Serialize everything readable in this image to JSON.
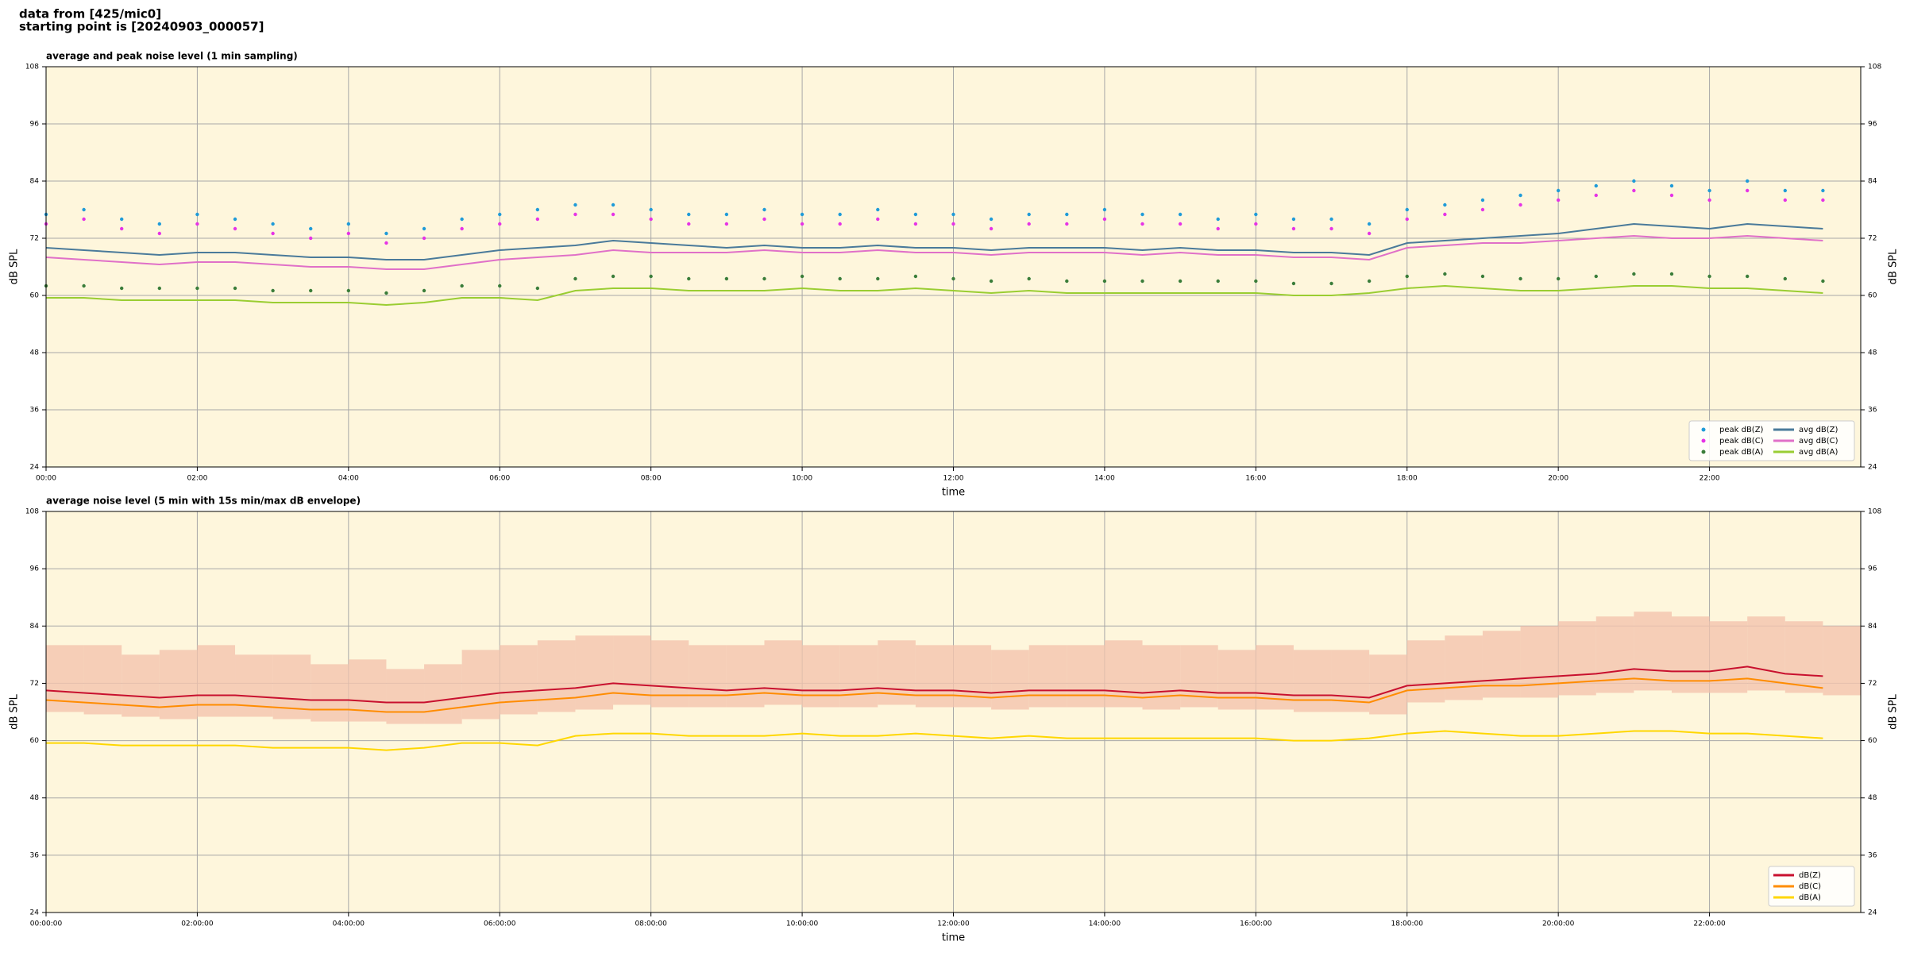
{
  "page_title": [
    "data from [425/mic0]",
    "starting point is [20240903_000057]"
  ],
  "chart_data": [
    {
      "type": "line",
      "title": "average and peak noise level (1 min sampling)",
      "xlabel": "time",
      "ylabel": "dB SPL",
      "background": "#fef6dc",
      "grid": true,
      "legend": "lower right",
      "xlim": [
        0,
        24
      ],
      "ylim": [
        24,
        108
      ],
      "xticks": [
        {
          "value": 0,
          "label": "00:00"
        },
        {
          "value": 2,
          "label": "02:00"
        },
        {
          "value": 4,
          "label": "04:00"
        },
        {
          "value": 6,
          "label": "06:00"
        },
        {
          "value": 8,
          "label": "08:00"
        },
        {
          "value": 10,
          "label": "10:00"
        },
        {
          "value": 12,
          "label": "12:00"
        },
        {
          "value": 14,
          "label": "14:00"
        },
        {
          "value": 16,
          "label": "16:00"
        },
        {
          "value": 18,
          "label": "18:00"
        },
        {
          "value": 20,
          "label": "20:00"
        },
        {
          "value": 22,
          "label": "22:00"
        }
      ],
      "yticks": [
        24,
        36,
        48,
        60,
        72,
        84,
        96,
        108
      ],
      "x": [
        0,
        0.5,
        1,
        1.5,
        2,
        2.5,
        3,
        3.5,
        4,
        4.5,
        5,
        5.5,
        6,
        6.5,
        7,
        7.5,
        8,
        8.5,
        9,
        9.5,
        10,
        10.5,
        11,
        11.5,
        12,
        12.5,
        13,
        13.5,
        14,
        14.5,
        15,
        15.5,
        16,
        16.5,
        17,
        17.5,
        18,
        18.5,
        19,
        19.5,
        20,
        20.5,
        21,
        21.5,
        22,
        22.5,
        23,
        23.5
      ],
      "series": [
        {
          "name": "peak dB(Z)",
          "style": "dots",
          "color": "#1f9bd8",
          "values": [
            77,
            78,
            76,
            75,
            77,
            76,
            75,
            74,
            75,
            73,
            74,
            76,
            77,
            78,
            79,
            79,
            78,
            77,
            77,
            78,
            77,
            77,
            78,
            77,
            77,
            76,
            77,
            77,
            78,
            77,
            77,
            76,
            77,
            76,
            76,
            75,
            78,
            79,
            80,
            81,
            82,
            83,
            84,
            83,
            82,
            84,
            82,
            82
          ]
        },
        {
          "name": "peak dB(C)",
          "style": "dots",
          "color": "#e633e6",
          "values": [
            75,
            76,
            74,
            73,
            75,
            74,
            73,
            72,
            73,
            71,
            72,
            74,
            75,
            76,
            77,
            77,
            76,
            75,
            75,
            76,
            75,
            75,
            76,
            75,
            75,
            74,
            75,
            75,
            76,
            75,
            75,
            74,
            75,
            74,
            74,
            73,
            76,
            77,
            78,
            79,
            80,
            81,
            82,
            81,
            80,
            82,
            80,
            80
          ]
        },
        {
          "name": "peak dB(A)",
          "style": "dots",
          "color": "#3a7d3a",
          "values": [
            62,
            62,
            61.5,
            61.5,
            61.5,
            61.5,
            61,
            61,
            61,
            60.5,
            61,
            62,
            62,
            61.5,
            63.5,
            64,
            64,
            63.5,
            63.5,
            63.5,
            64,
            63.5,
            63.5,
            64,
            63.5,
            63,
            63.5,
            63,
            63,
            63,
            63,
            63,
            63,
            62.5,
            62.5,
            63,
            64,
            64.5,
            64,
            63.5,
            63.5,
            64,
            64.5,
            64.5,
            64,
            64,
            63.5,
            63
          ]
        },
        {
          "name": "avg dB(Z)",
          "style": "line",
          "color": "#4a7a9a",
          "values": [
            70,
            69.5,
            69,
            68.5,
            69,
            69,
            68.5,
            68,
            68,
            67.5,
            67.5,
            68.5,
            69.5,
            70,
            70.5,
            71.5,
            71,
            70.5,
            70,
            70.5,
            70,
            70,
            70.5,
            70,
            70,
            69.5,
            70,
            70,
            70,
            69.5,
            70,
            69.5,
            69.5,
            69,
            69,
            68.5,
            71,
            71.5,
            72,
            72.5,
            73,
            74,
            75,
            74.5,
            74,
            75,
            74.5,
            74
          ]
        },
        {
          "name": "avg dB(C)",
          "style": "line",
          "color": "#e070c8",
          "values": [
            68,
            67.5,
            67,
            66.5,
            67,
            67,
            66.5,
            66,
            66,
            65.5,
            65.5,
            66.5,
            67.5,
            68,
            68.5,
            69.5,
            69,
            69,
            69,
            69.5,
            69,
            69,
            69.5,
            69,
            69,
            68.5,
            69,
            69,
            69,
            68.5,
            69,
            68.5,
            68.5,
            68,
            68,
            67.5,
            70,
            70.5,
            71,
            71,
            71.5,
            72,
            72.5,
            72,
            72,
            72.5,
            72,
            71.5
          ]
        },
        {
          "name": "avg dB(A)",
          "style": "line",
          "color": "#9acd32",
          "values": [
            59.5,
            59.5,
            59,
            59,
            59,
            59,
            58.5,
            58.5,
            58.5,
            58,
            58.5,
            59.5,
            59.5,
            59,
            61,
            61.5,
            61.5,
            61,
            61,
            61,
            61.5,
            61,
            61,
            61.5,
            61,
            60.5,
            61,
            60.5,
            60.5,
            60.5,
            60.5,
            60.5,
            60.5,
            60,
            60,
            60.5,
            61.5,
            62,
            61.5,
            61,
            61,
            61.5,
            62,
            62,
            61.5,
            61.5,
            61,
            60.5
          ]
        }
      ]
    },
    {
      "type": "line",
      "title": "average noise level (5 min with 15s min/max dB envelope)",
      "xlabel": "time",
      "ylabel": "dB SPL",
      "background": "#fef6dc",
      "grid": true,
      "legend": "lower right",
      "xlim": [
        0,
        24
      ],
      "ylim": [
        24,
        108
      ],
      "xticks": [
        {
          "value": 0,
          "label": "00:00:00"
        },
        {
          "value": 2,
          "label": "02:00:00"
        },
        {
          "value": 4,
          "label": "04:00:00"
        },
        {
          "value": 6,
          "label": "06:00:00"
        },
        {
          "value": 8,
          "label": "08:00:00"
        },
        {
          "value": 10,
          "label": "10:00:00"
        },
        {
          "value": 12,
          "label": "12:00:00"
        },
        {
          "value": 14,
          "label": "14:00:00"
        },
        {
          "value": 16,
          "label": "16:00:00"
        },
        {
          "value": 18,
          "label": "18:00:00"
        },
        {
          "value": 20,
          "label": "20:00:00"
        },
        {
          "value": 22,
          "label": "22:00:00"
        }
      ],
      "yticks": [
        24,
        36,
        48,
        60,
        72,
        84,
        96,
        108
      ],
      "x": [
        0,
        0.5,
        1,
        1.5,
        2,
        2.5,
        3,
        3.5,
        4,
        4.5,
        5,
        5.5,
        6,
        6.5,
        7,
        7.5,
        8,
        8.5,
        9,
        9.5,
        10,
        10.5,
        11,
        11.5,
        12,
        12.5,
        13,
        13.5,
        14,
        14.5,
        15,
        15.5,
        16,
        16.5,
        17,
        17.5,
        18,
        18.5,
        19,
        19.5,
        20,
        20.5,
        21,
        21.5,
        22,
        22.5,
        23,
        23.5
      ],
      "band": {
        "color": "#f4c4ae",
        "lower": [
          66,
          65.5,
          65,
          64.5,
          65,
          65,
          64.5,
          64,
          64,
          63.5,
          63.5,
          64.5,
          65.5,
          66,
          66.5,
          67.5,
          67,
          67,
          67,
          67.5,
          67,
          67,
          67.5,
          67,
          67,
          66.5,
          67,
          67,
          67,
          66.5,
          67,
          66.5,
          66.5,
          66,
          66,
          65.5,
          68,
          68.5,
          69,
          69,
          69.5,
          70,
          70.5,
          70,
          70,
          70.5,
          70,
          69.5
        ],
        "upper": [
          80,
          80,
          78,
          79,
          80,
          78,
          78,
          76,
          77,
          75,
          76,
          79,
          80,
          81,
          82,
          82,
          81,
          80,
          80,
          81,
          80,
          80,
          81,
          80,
          80,
          79,
          80,
          80,
          81,
          80,
          80,
          79,
          80,
          79,
          79,
          78,
          81,
          82,
          83,
          84,
          85,
          86,
          87,
          86,
          85,
          86,
          85,
          84
        ]
      },
      "series": [
        {
          "name": "dB(Z)",
          "style": "line",
          "color": "#c8102e",
          "values": [
            70.5,
            70,
            69.5,
            69,
            69.5,
            69.5,
            69,
            68.5,
            68.5,
            68,
            68,
            69,
            70,
            70.5,
            71,
            72,
            71.5,
            71,
            70.5,
            71,
            70.5,
            70.5,
            71,
            70.5,
            70.5,
            70,
            70.5,
            70.5,
            70.5,
            70,
            70.5,
            70,
            70,
            69.5,
            69.5,
            69,
            71.5,
            72,
            72.5,
            73,
            73.5,
            74,
            75,
            74.5,
            74.5,
            75.5,
            74,
            73.5
          ]
        },
        {
          "name": "dB(C)",
          "style": "line",
          "color": "#ff8c00",
          "values": [
            68.5,
            68,
            67.5,
            67,
            67.5,
            67.5,
            67,
            66.5,
            66.5,
            66,
            66,
            67,
            68,
            68.5,
            69,
            70,
            69.5,
            69.5,
            69.5,
            70,
            69.5,
            69.5,
            70,
            69.5,
            69.5,
            69,
            69.5,
            69.5,
            69.5,
            69,
            69.5,
            69,
            69,
            68.5,
            68.5,
            68,
            70.5,
            71,
            71.5,
            71.5,
            72,
            72.5,
            73,
            72.5,
            72.5,
            73,
            72,
            71
          ]
        },
        {
          "name": "dB(A)",
          "style": "line",
          "color": "#ffd700",
          "values": [
            59.5,
            59.5,
            59,
            59,
            59,
            59,
            58.5,
            58.5,
            58.5,
            58,
            58.5,
            59.5,
            59.5,
            59,
            61,
            61.5,
            61.5,
            61,
            61,
            61,
            61.5,
            61,
            61,
            61.5,
            61,
            60.5,
            61,
            60.5,
            60.5,
            60.5,
            60.5,
            60.5,
            60.5,
            60,
            60,
            60.5,
            61.5,
            62,
            61.5,
            61,
            61,
            61.5,
            62,
            62,
            61.5,
            61.5,
            61,
            60.5
          ]
        }
      ]
    }
  ]
}
